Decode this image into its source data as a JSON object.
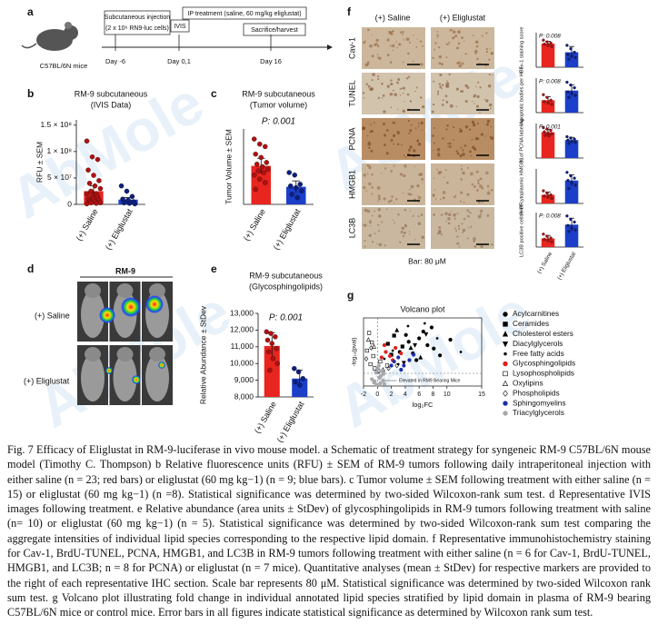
{
  "watermark": "AbMole",
  "panel_labels": [
    "a",
    "b",
    "c",
    "d",
    "e",
    "f",
    "g"
  ],
  "schematic": {
    "mouse_label": "C57BL/6N mice",
    "injection_box": [
      "Subcutaneous injection",
      "(2 x 10⁶ RN9-luc cells)"
    ],
    "ivis_box": "IVIS",
    "ip_box": "IP treatment (saline, 60 mg/kg eliglustat)",
    "harvest_box": "Sacrifice/harvest",
    "timepoints": [
      "Day -6",
      "Day 0,1",
      "Day 16"
    ]
  },
  "ivis": {
    "header": "RM-9",
    "row_labels": [
      "(+) Saline",
      "(+) Eliglustat"
    ]
  },
  "ihc": {
    "column_headers": [
      "(+) Saline",
      "(+) Eliglustat"
    ],
    "row_labels": [
      "Cav-1",
      "TUNEL",
      "PCNA",
      "HMGB1",
      "LC3B"
    ],
    "scale_label": "Bar: 80 μM"
  },
  "chart_data": [
    {
      "type": "bar",
      "title": "RM-9 subcutaneous",
      "subtitle": "(IVIS Data)",
      "y_label": "RFU ± SEM",
      "categories": [
        "(+) Saline",
        "(+) Eliglustat"
      ],
      "colors": [
        "#e8251f",
        "#1b3fc9"
      ],
      "values": [
        25000000,
        9000000
      ],
      "errors": [
        10000000,
        4000000
      ],
      "points": [
        [
          120000000,
          90000000,
          85000000,
          65000000,
          55000000,
          45000000,
          40000000,
          35000000,
          30000000,
          25000000,
          20000000,
          20000000,
          15000000,
          15000000,
          10000000,
          10000000,
          8000000,
          5000000,
          5000000,
          3000000,
          3000000,
          2000000,
          1000000
        ],
        [
          35000000,
          25000000,
          15000000,
          10000000,
          8000000,
          5000000,
          3000000,
          2000000,
          1000000
        ]
      ],
      "ylim": [
        0,
        160000000
      ],
      "yticks": [
        0,
        {
          "value": 50000000,
          "label": "5 × 10⁷"
        },
        {
          "value": 100000000,
          "label": "1 × 10⁸"
        },
        {
          "value": 150000000,
          "label": "1.5 × 10⁸"
        }
      ]
    },
    {
      "type": "bar",
      "title": "RM-9 subcutaneous",
      "subtitle": "(Tumor volume)",
      "y_label": "Tumor Volume ± SEM",
      "annotation": "P: 0.001",
      "categories": [
        "(+) Saline",
        "(+) Eliglustat"
      ],
      "colors": [
        "#e8251f",
        "#1b3fc9"
      ],
      "values": [
        460,
        210
      ],
      "errors": [
        90,
        70
      ],
      "points": [
        [
          780,
          720,
          690,
          600,
          560,
          500,
          480,
          450,
          420,
          400,
          380,
          350,
          300,
          260,
          180
        ],
        [
          380,
          350,
          240,
          220,
          200,
          160,
          120,
          80
        ]
      ],
      "ylim": [
        0,
        900
      ]
    },
    {
      "type": "bar",
      "title": "RM-9 subcutaneous",
      "subtitle": "(Glycosphingolipids)",
      "y_label": "Relative Abundance ± StDev",
      "annotation": "P: 0.001",
      "categories": [
        "(+) Saline",
        "(+) Eliglustat"
      ],
      "colors": [
        "#e8251f",
        "#1b3fc9"
      ],
      "values": [
        11050,
        9100
      ],
      "errors": [
        800,
        500
      ],
      "points": [
        [
          11900,
          11800,
          11600,
          11400,
          11200,
          10900,
          10700,
          10300,
          10000,
          9600
        ],
        [
          9700,
          9500,
          9100,
          8900,
          8700
        ]
      ],
      "ylim": [
        8000,
        13000
      ],
      "yticks": [
        {
          "value": 8000,
          "label": "8,000"
        },
        {
          "value": 9000,
          "label": "9,000"
        },
        {
          "value": 10000,
          "label": "10,000"
        },
        {
          "value": 11000,
          "label": "11,000"
        },
        {
          "value": 12000,
          "label": "12,000"
        },
        {
          "value": 13000,
          "label": "13,000"
        }
      ]
    },
    {
      "type": "bar",
      "y_label": "Cav-1 staining score",
      "annotation": "P: 0.008",
      "colors": [
        "#e8251f",
        "#1b3fc9"
      ],
      "values": [
        205,
        130
      ],
      "errors": [
        20,
        50
      ],
      "points": [
        [
          235,
          220,
          210,
          200,
          190,
          180
        ],
        [
          190,
          160,
          130,
          110,
          95,
          85,
          70
        ]
      ],
      "ylim": [
        0,
        300
      ]
    },
    {
      "type": "bar",
      "y_label": "Apoptotic bodies per HPF",
      "annotation": "P: 0.008",
      "colors": [
        "#e8251f",
        "#1b3fc9"
      ],
      "values": [
        18,
        32
      ],
      "errors": [
        5,
        8
      ],
      "points": [
        [
          26,
          22,
          18,
          16,
          14,
          12
        ],
        [
          44,
          40,
          36,
          30,
          28,
          25,
          22
        ]
      ],
      "ylim": [
        0,
        50
      ]
    },
    {
      "type": "bar",
      "y_label": "% of PCNA labeling",
      "annotation": "P: 0.001",
      "colors": [
        "#e8251f",
        "#1b3fc9"
      ],
      "values": [
        75,
        52
      ],
      "errors": [
        8,
        8
      ],
      "points": [
        [
          88,
          84,
          80,
          76,
          72,
          70,
          66,
          64
        ],
        [
          62,
          58,
          55,
          52,
          48,
          46,
          42
        ]
      ],
      "ylim": [
        0,
        100
      ]
    },
    {
      "type": "bar",
      "y_label": "% of cytoplasmic HMGB1",
      "colors": [
        "#e8251f",
        "#1b3fc9"
      ],
      "values": [
        15,
        40
      ],
      "errors": [
        5,
        10
      ],
      "points": [
        [
          22,
          18,
          15,
          13,
          11,
          9
        ],
        [
          54,
          48,
          44,
          40,
          36,
          32,
          26
        ]
      ],
      "ylim": [
        0,
        60
      ]
    },
    {
      "type": "bar",
      "y_label": "LC3B positive cells/HPF",
      "annotation": "P: 0.008",
      "categories": [
        "(+) Saline",
        "(+) Eliglustat"
      ],
      "colors": [
        "#e8251f",
        "#1b3fc9"
      ],
      "values": [
        20,
        52
      ],
      "errors": [
        7,
        15
      ],
      "points": [
        [
          30,
          25,
          21,
          18,
          15,
          12
        ],
        [
          72,
          64,
          58,
          50,
          44,
          40,
          36
        ]
      ],
      "ylim": [
        0,
        80
      ]
    },
    {
      "type": "scatter",
      "title": "Volcano plot",
      "x_label": "log₂FC",
      "y_label": "-log₁₀(pval)",
      "annotation": "Elevated in RM9 Bearing Mice",
      "xlim": [
        -2,
        15
      ],
      "xticks": [
        -2,
        0,
        2,
        4,
        6,
        8,
        10,
        15
      ],
      "ylim": [
        0,
        10
      ],
      "series": [
        {
          "name": "Acylcarnitines",
          "color": "#000000",
          "marker": "circle",
          "x": [
            3.2,
            4.5,
            5.1,
            6.0,
            7.2,
            8.1,
            9.0,
            5.6,
            6.6,
            4.1,
            10.5,
            7.8
          ],
          "y": [
            5.0,
            6.5,
            4.8,
            7.0,
            6.0,
            5.5,
            4.5,
            3.8,
            8.0,
            7.5,
            6.8,
            8.6
          ]
        },
        {
          "name": "Ceramides",
          "color": "#000000",
          "marker": "square",
          "x": [
            1.5,
            2.4,
            3.6,
            2.0
          ],
          "y": [
            6.2,
            7.4,
            5.8,
            4.6
          ]
        },
        {
          "name": "Cholesterol esters",
          "color": "#000000",
          "marker": "triangle",
          "x": [
            2.8,
            4.8,
            6.2
          ],
          "y": [
            8.2,
            5.6,
            4.2
          ]
        },
        {
          "name": "Diacylglycerols",
          "color": "#000000",
          "marker": "triangle-down",
          "x": [
            3.8,
            5.4,
            7.0
          ],
          "y": [
            3.4,
            6.0,
            7.6
          ]
        },
        {
          "name": "Free fatty acids",
          "color": "#000000",
          "marker": "dot",
          "x": [
            1.0,
            2.2,
            3.0,
            4.4,
            6.8,
            8.6,
            12.0
          ],
          "y": [
            4.0,
            5.2,
            3.2,
            8.8,
            9.2,
            7.0,
            5.0
          ]
        },
        {
          "name": "Glycosphingolipids",
          "color": "#e0201c",
          "marker": "circle",
          "x": [
            0.6,
            1.2,
            1.8,
            2.6,
            3.4,
            1.0,
            2.2
          ],
          "y": [
            4.2,
            5.0,
            4.4,
            5.6,
            4.8,
            6.0,
            3.8
          ]
        },
        {
          "name": "Lysophospholipids",
          "color": "#000000",
          "marker": "open-square",
          "x": [
            -1.2,
            -0.8,
            -1.5,
            -0.6,
            0.4,
            1.4,
            -1.0,
            -0.4
          ],
          "y": [
            7.8,
            6.4,
            5.2,
            4.4,
            3.6,
            3.0,
            3.2,
            2.6
          ]
        },
        {
          "name": "Oxylipins",
          "color": "#000000",
          "marker": "open-triangle",
          "x": [
            -1.3,
            -0.5,
            0.8
          ],
          "y": [
            6.8,
            5.8,
            2.4
          ]
        },
        {
          "name": "Phospholipids",
          "color": "#000000",
          "marker": "open-diamond",
          "x": [
            -0.9,
            0.2,
            1.6,
            2.8,
            -1.6
          ],
          "y": [
            5.6,
            2.2,
            2.6,
            3.0,
            4.0
          ]
        },
        {
          "name": "Sphingomyelins",
          "color": "#1b2fa8",
          "marker": "circle",
          "x": [
            2.4,
            3.0,
            3.8,
            4.6,
            2.0,
            3.4,
            5.2
          ],
          "y": [
            3.6,
            4.2,
            3.0,
            3.8,
            3.0,
            2.4,
            4.6
          ]
        },
        {
          "name": "Triacylglycerols",
          "color": "#a8a8a8",
          "marker": "circle",
          "x": [
            -0.5,
            0.3,
            0.8,
            -0.2,
            0.5,
            1.0,
            -0.8,
            0.1,
            0.6,
            -0.4,
            0.9,
            0.2,
            -0.1,
            0.4
          ],
          "y": [
            0.5,
            1.2,
            0.8,
            2.0,
            1.5,
            0.3,
            1.0,
            2.5,
            2.2,
            0.7,
            1.8,
            3.0,
            0.2,
            0.4
          ]
        }
      ]
    }
  ],
  "caption": "Fig. 7 Efficacy of Eliglustat in RM-9-luciferase in vivo mouse model. a Schematic of treatment strategy for syngeneic RM-9 C57BL/6N mouse model (Timothy C. Thompson) b Relative fluorescence units (RFU) ± SEM of RM-9 tumors following daily intraperitoneal injection with either saline (n = 23; red bars) or eliglustat (60 mg kg−1) (n = 9; blue bars). c Tumor volume ± SEM following treatment with either saline (n = 15) or eliglustat (60 mg kg−1) (n =8). Statistical significance was determined by two-sided Wilcoxon-rank sum test. d Representative IVIS images following treatment. e Relative abundance (area units ± StDev) of glycosphingolipids in RM-9 tumors following treatment with saline (n= 10) or eliglustat (60 mg kg−1) (n = 5). Statistical significance was determined by two-sided Wilcoxon-rank sum test comparing the aggregate intensities of individual lipid species corresponding to the respective lipid domain. f Representative immunohistochemistry staining for Cav-1, BrdU-TUNEL, PCNA, HMGB1, and LC3B in RM-9 tumors following treatment with either saline (n = 6 for Cav-1, BrdU-TUNEL, HMGB1, and LC3B; n = 8 for PCNA) or eliglustat (n = 7 mice). Quantitative analyses (mean ± StDev) for respective markers are provided to the right of each representative IHC section. Scale bar represents 80 μM. Statistical significance was determined by two-sided Wilcoxon rank sum test. g Volcano plot illustrating fold change in individual annotated lipid species stratified by lipid domain in plasma of RM-9 bearing C57BL/6N mice or control mice. Error bars in all figures indicate statistical significance as determined by Wilcoxon rank sum test."
}
